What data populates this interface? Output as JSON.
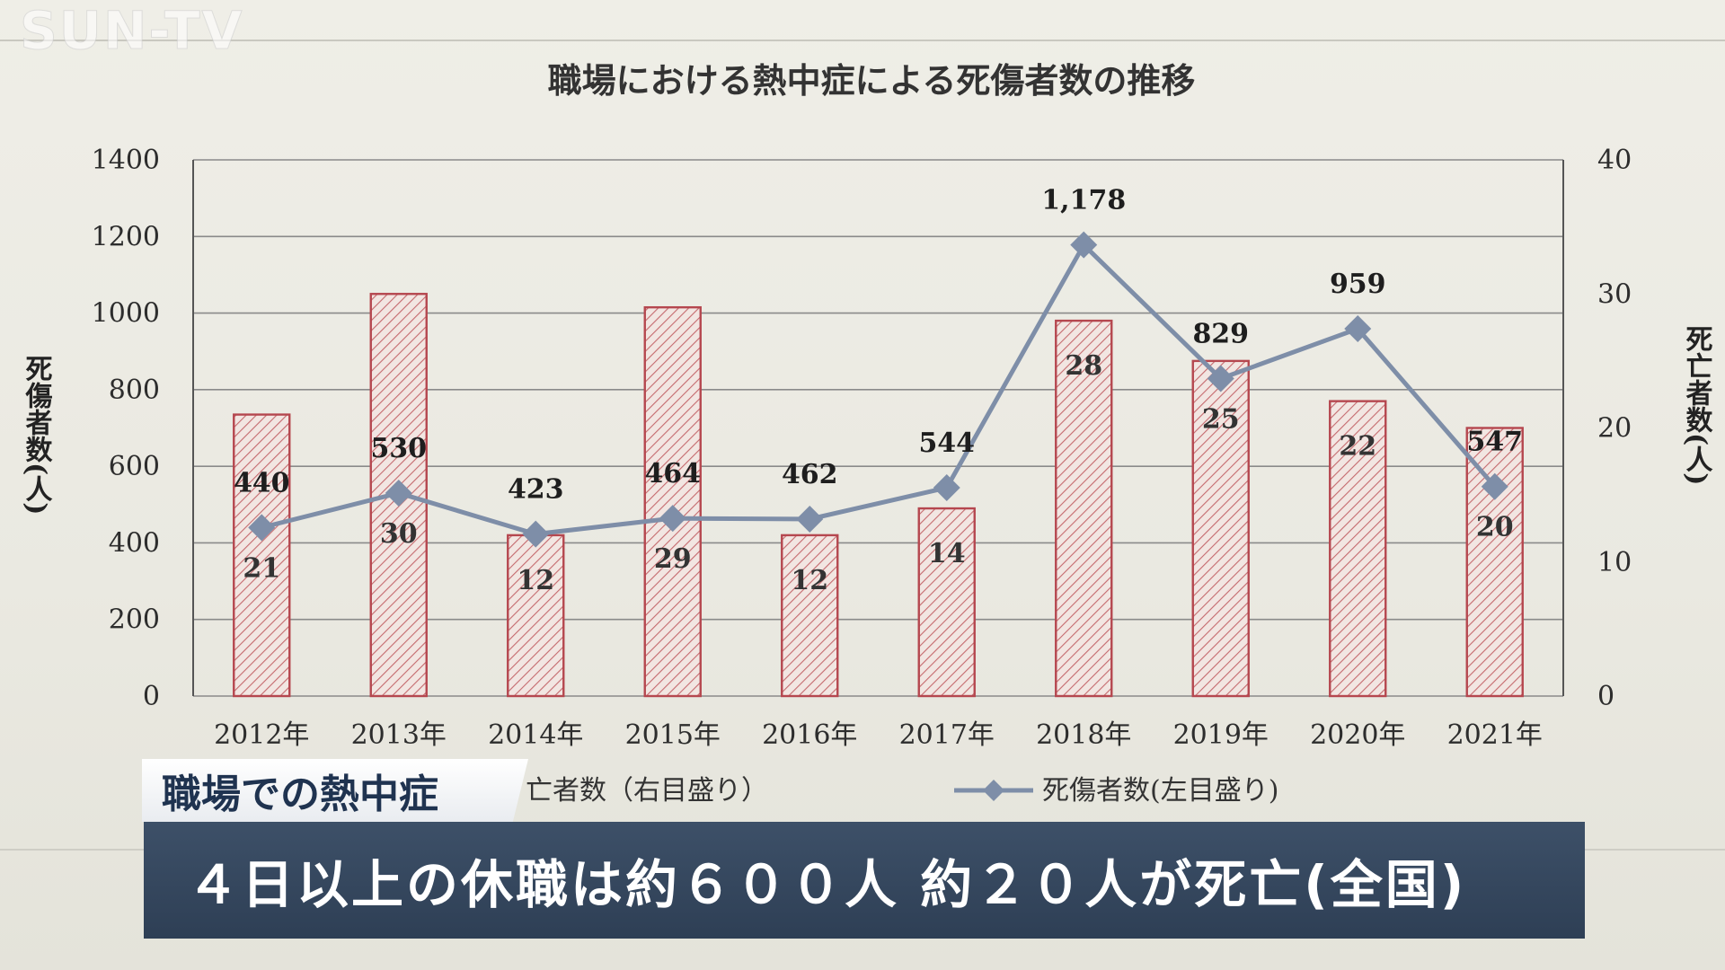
{
  "watermark": "SUN-TV",
  "overlay": {
    "topic_tag": "職場での熱中症",
    "caption": "４日以上の休職は約６００人  約２０人が死亡(全国)"
  },
  "chart_data": {
    "type": "bar+line",
    "title": "職場における熱中症による死傷者数の推移",
    "categories": [
      "2012年",
      "2013年",
      "2014年",
      "2015年",
      "2016年",
      "2017年",
      "2018年",
      "2019年",
      "2020年",
      "2021年"
    ],
    "series": [
      {
        "name": "死亡者数（右目盛り）",
        "type": "bar",
        "axis": "right",
        "values": [
          21,
          30,
          12,
          29,
          12,
          14,
          28,
          25,
          22,
          20
        ],
        "labels": [
          "21",
          "30",
          "12",
          "29",
          "12",
          "14",
          "28",
          "25",
          "22",
          "20"
        ]
      },
      {
        "name": "死傷者数(左目盛り)",
        "type": "line",
        "axis": "left",
        "values": [
          440,
          530,
          423,
          464,
          462,
          544,
          1178,
          829,
          959,
          547
        ],
        "labels": [
          "440",
          "530",
          "423",
          "464",
          "462",
          "544",
          "1,178",
          "829",
          "959",
          "547"
        ]
      }
    ],
    "left_axis": {
      "label": "死傷者数(人)",
      "ylim": [
        0,
        1400
      ],
      "ticks": [
        "0",
        "200",
        "400",
        "600",
        "800",
        "1000",
        "1200",
        "1400"
      ]
    },
    "right_axis": {
      "label": "死亡者数(人)",
      "ylim": [
        0,
        40
      ],
      "ticks": [
        "0",
        "10",
        "20",
        "30",
        "40"
      ]
    },
    "legend_partial_text": "亡者数（右目盛り）",
    "grid": true,
    "legend_position": "bottom",
    "colors": {
      "bar_stroke": "#b5474f",
      "bar_hatch": "#c56a6e",
      "line": "#7e8ea8",
      "grid": "#8a8a8a"
    }
  }
}
